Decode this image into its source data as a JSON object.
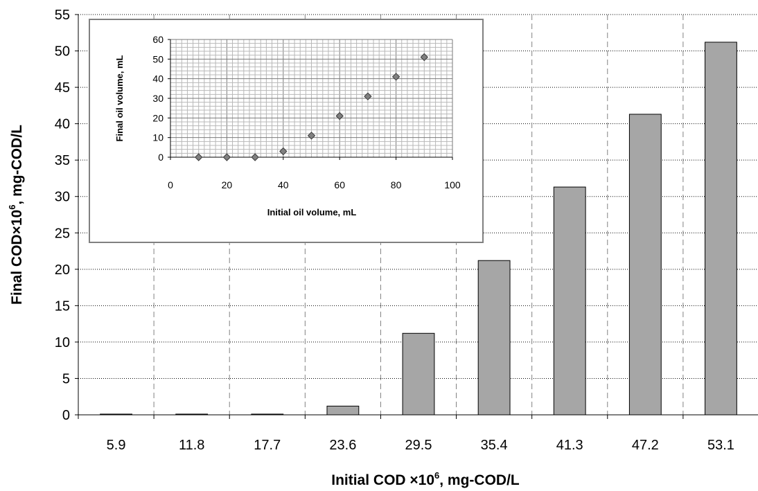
{
  "chart_data": [
    {
      "type": "bar",
      "xlabel_main": "Initial COD ×10",
      "xlabel_sup": "6",
      "xlabel_rest": ", mg-COD/L",
      "ylabel_main": "Final COD×10",
      "ylabel_sup": "6",
      "ylabel_rest": ", mg-COD/L",
      "categories": [
        "5.9",
        "11.8",
        "17.7",
        "23.6",
        "29.5",
        "35.4",
        "41.3",
        "47.2",
        "53.1"
      ],
      "values": [
        0.1,
        0.1,
        0.1,
        1.2,
        11.2,
        21.2,
        31.3,
        41.3,
        51.2
      ],
      "ylim": [
        0,
        55
      ],
      "yticks": [
        0,
        5,
        10,
        15,
        20,
        25,
        30,
        35,
        40,
        45,
        50,
        55
      ],
      "grid": "horizontal dotted and vertical dashed",
      "bar_color": "#a6a6a6"
    },
    {
      "type": "scatter",
      "xlabel": "Initial oil volume, mL",
      "ylabel": "Final oil volume, mL",
      "x": [
        10,
        20,
        30,
        40,
        50,
        60,
        70,
        80,
        90
      ],
      "y": [
        0,
        0,
        0,
        3,
        11,
        21,
        31,
        41,
        51
      ],
      "xlim": [
        0,
        100
      ],
      "ylim": [
        0,
        60
      ],
      "xticks": [
        0,
        20,
        40,
        60,
        80,
        100
      ],
      "yticks": [
        0,
        10,
        20,
        30,
        40,
        50,
        60
      ],
      "grid": "on",
      "marker": "diamond",
      "marker_color": "#808080"
    }
  ]
}
